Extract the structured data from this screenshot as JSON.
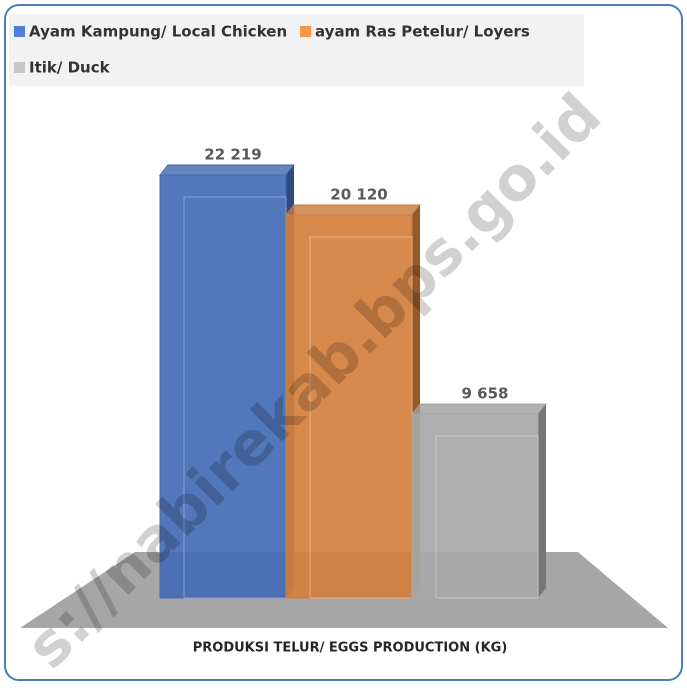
{
  "chart_data": {
    "type": "bar3d",
    "categories": [
      "PRODUKSI TELUR/ EGGS PRODUCTION (KG)"
    ],
    "series": [
      {
        "name": "Ayam Kampung/ Local Chicken",
        "color": "#4f7fd6",
        "values": [
          22219
        ],
        "value_labels": [
          "22 219"
        ]
      },
      {
        "name": "ayam Ras Petelur/ Loyers",
        "color": "#f79646",
        "values": [
          20120
        ],
        "value_labels": [
          "20 120"
        ]
      },
      {
        "name": "Itik/ Duck",
        "color": "#c6c6c6",
        "values": [
          9658
        ],
        "value_labels": [
          "9 658"
        ]
      }
    ],
    "legend": "top",
    "watermark": "s://nabirekab.bps.go.id"
  }
}
